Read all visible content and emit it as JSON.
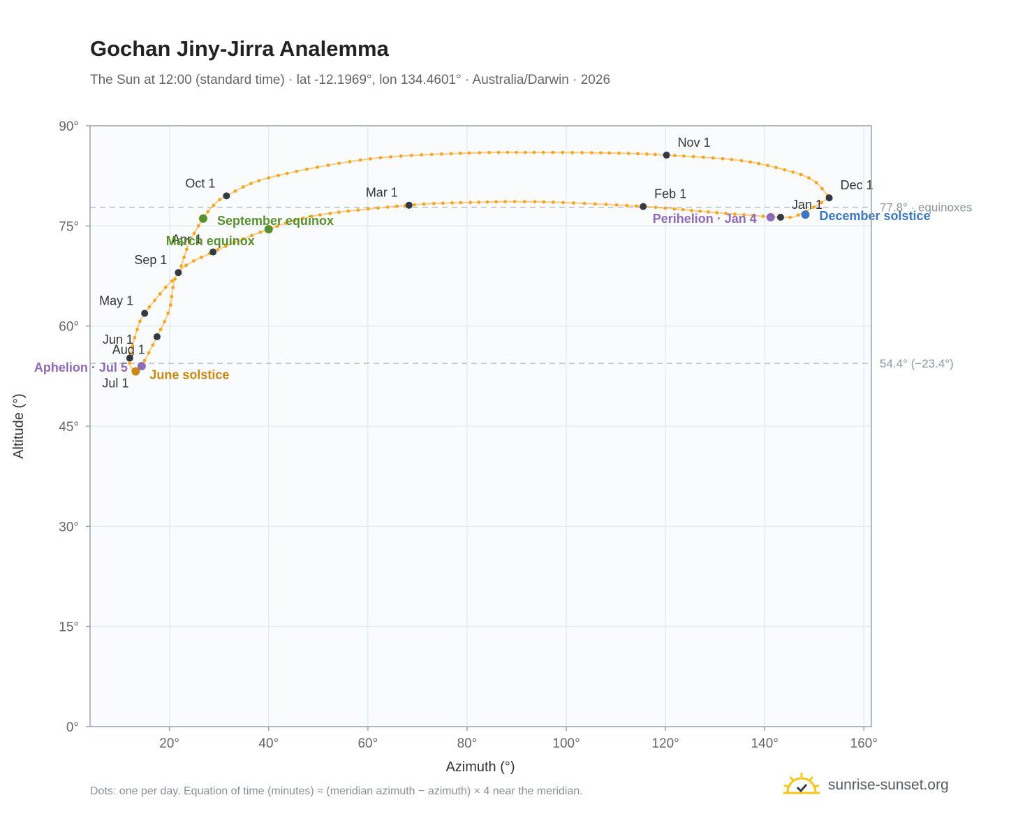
{
  "header": {
    "title": "Gochan Jiny-Jirra Analemma",
    "subtitle": "The Sun at 12:00 (standard time) · lat -12.1969°, lon 134.4601° · Australia/Darwin · 2026"
  },
  "footer": {
    "note": "Dots: one per day. Equation of time (minutes) ≈ (meridian azimuth − azimuth) × 4 near the meridian.",
    "brand": "sunrise-sunset.org",
    "brand_icon": "sun-logo-icon"
  },
  "colors": {
    "path": "#f5a623",
    "month": "#333a44",
    "equinox": "#5a8f2e",
    "june_solstice": "#c88a12",
    "december_solstice": "#3a78c2",
    "apsis": "#8e6bb8",
    "reference": "#b8bec6",
    "grid": "#e6ebf0",
    "plot_bg": "#f9fbfd",
    "axis_text": "#666666"
  },
  "chart_data": {
    "type": "scatter",
    "xlabel": "Azimuth (°)",
    "ylabel": "Altitude (°)",
    "xlim": [
      4,
      161.5
    ],
    "ylim": [
      0,
      90
    ],
    "x_ticks": [
      20,
      40,
      60,
      80,
      100,
      120,
      140,
      160
    ],
    "y_ticks": [
      0,
      15,
      30,
      45,
      60,
      75,
      90
    ],
    "x_tick_labels": [
      "20°",
      "40°",
      "60°",
      "80°",
      "100°",
      "120°",
      "140°",
      "160°"
    ],
    "y_tick_labels": [
      "0°",
      "15°",
      "30°",
      "45°",
      "60°",
      "75°",
      "90°"
    ],
    "grid": true,
    "path_anchors": [
      [
        153,
        79.2
      ],
      [
        147,
        76.7
      ],
      [
        143.2,
        76.3
      ],
      [
        130,
        77.0
      ],
      [
        115.5,
        77.9
      ],
      [
        95,
        78.6
      ],
      [
        80,
        78.5
      ],
      [
        68.3,
        78.1
      ],
      [
        50,
        76.6
      ],
      [
        40,
        74.5
      ],
      [
        28.8,
        71.1
      ],
      [
        21.8,
        68.0
      ],
      [
        20,
        62.5
      ],
      [
        17.5,
        58.4
      ],
      [
        14.5,
        54.2
      ],
      [
        13.2,
        53.2
      ],
      [
        12.3,
        53.8
      ],
      [
        12,
        55.2
      ],
      [
        13.5,
        59.5
      ],
      [
        15.0,
        61.9
      ],
      [
        19,
        65.6
      ],
      [
        21.8,
        68.0
      ],
      [
        24,
        72.5
      ],
      [
        26.8,
        76.1
      ],
      [
        28.8,
        78.0
      ],
      [
        31.5,
        79.5
      ],
      [
        40,
        82.2
      ],
      [
        60,
        85.0
      ],
      [
        80,
        85.9
      ],
      [
        95,
        86.0
      ],
      [
        110,
        85.9
      ],
      [
        120.2,
        85.6
      ],
      [
        135,
        84.8
      ],
      [
        145,
        83.2
      ],
      [
        150,
        81.7
      ],
      [
        153,
        79.2
      ]
    ],
    "month_markers": [
      {
        "label": "Jan 1",
        "x": 143.2,
        "y": 76.3
      },
      {
        "label": "Feb 1",
        "x": 115.5,
        "y": 77.9
      },
      {
        "label": "Mar 1",
        "x": 68.3,
        "y": 78.1
      },
      {
        "label": "Apr 1",
        "x": 28.8,
        "y": 71.1
      },
      {
        "label": "May 1",
        "x": 15.0,
        "y": 61.9
      },
      {
        "label": "Jun 1",
        "x": 17.5,
        "y": 58.4
      },
      {
        "label": "Jul 1",
        "x": 13.2,
        "y": 53.2
      },
      {
        "label": "Aug 1",
        "x": 12.0,
        "y": 55.2
      },
      {
        "label": "Sep 1",
        "x": 21.8,
        "y": 68.0
      },
      {
        "label": "Oct 1",
        "x": 31.5,
        "y": 79.5
      },
      {
        "label": "Nov 1",
        "x": 120.2,
        "y": 85.6
      },
      {
        "label": "Dec 1",
        "x": 153.0,
        "y": 79.2
      }
    ],
    "events": [
      {
        "label": "March equinox",
        "x": 40.0,
        "y": 74.5,
        "kind": "equinox"
      },
      {
        "label": "September equinox",
        "x": 26.8,
        "y": 76.1,
        "kind": "equinox"
      },
      {
        "label": "June solstice",
        "x": 13.2,
        "y": 53.2,
        "kind": "june_solstice"
      },
      {
        "label": "December solstice",
        "x": 148.2,
        "y": 76.7,
        "kind": "december_solstice"
      },
      {
        "label": "Perihelion · Jan 4",
        "x": 141.2,
        "y": 76.3,
        "kind": "apsis"
      },
      {
        "label": "Aphelion · Jul 5",
        "x": 14.4,
        "y": 54.0,
        "kind": "apsis"
      }
    ],
    "reference_lines": [
      {
        "y": 77.8,
        "label": "77.8° · equinoxes"
      },
      {
        "y": 54.4,
        "label": "54.4° (−23.4°)"
      }
    ]
  }
}
